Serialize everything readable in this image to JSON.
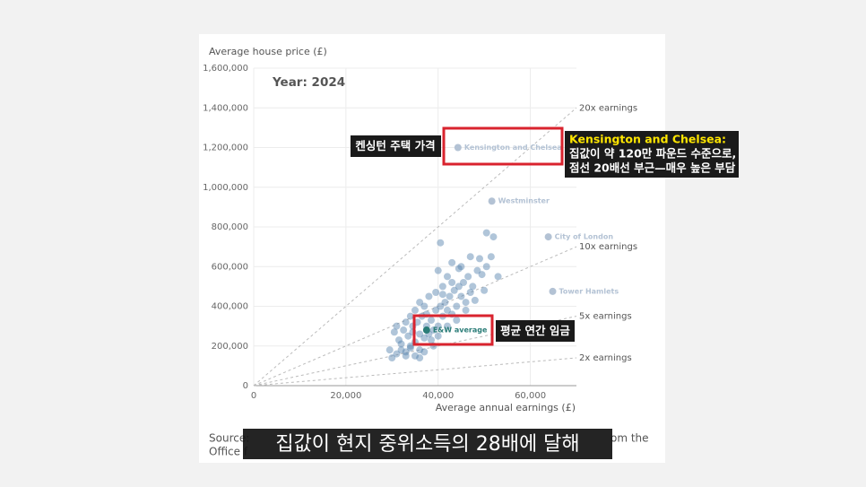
{
  "chart_data": {
    "type": "scatter",
    "title": "Year: 2024",
    "y_label": "Average house price (£)",
    "x_label": "Average annual earnings (£)",
    "xlim": [
      0,
      70000
    ],
    "ylim": [
      0,
      1600000
    ],
    "xticks": [
      0,
      {
        "value": 20000,
        "label": "20,000"
      },
      {
        "value": 40000,
        "label": "40,000"
      },
      {
        "value": 60000,
        "label": "60,000"
      }
    ],
    "yticks": [
      0,
      {
        "value": 200000,
        "label": "200,000"
      },
      {
        "value": 400000,
        "label": "400,000"
      },
      {
        "value": 600000,
        "label": "600,000"
      },
      {
        "value": 800000,
        "label": "800,000"
      },
      {
        "value": 1000000,
        "label": "1,000,000"
      },
      {
        "value": 1200000,
        "label": "1,200,000"
      },
      {
        "value": 1400000,
        "label": "1,400,000"
      },
      {
        "value": 1600000,
        "label": "1,600,000"
      }
    ],
    "grid": true,
    "series": [
      {
        "color": "#4f7fab",
        "x": [
          30000,
          31000,
          32000,
          33000,
          34000,
          35000,
          36000,
          37000,
          38000,
          33500,
          32500,
          31500,
          34500,
          35500,
          36500,
          37500,
          38500,
          39500,
          40500,
          41500,
          42500,
          43500,
          44500,
          45500,
          46500,
          47500,
          48500,
          49500,
          50500,
          51500,
          42000,
          43000,
          40000,
          41000,
          45000,
          46000,
          47000,
          38000,
          37000,
          36000,
          35000,
          34000,
          33000,
          39000,
          40000,
          41000,
          42000,
          43000,
          44000,
          45000,
          47000,
          49000,
          50500,
          40500,
          52000,
          53000,
          44000,
          36000,
          38500,
          34000,
          32000,
          30500,
          31000,
          39000,
          37000,
          35000,
          36000,
          33000,
          29500,
          40000,
          42000,
          46000,
          48000,
          50000,
          34500,
          37500,
          39500,
          41000,
          43000,
          44500
        ],
        "values": [
          140000,
          160000,
          180000,
          150000,
          200000,
          220000,
          180000,
          240000,
          260000,
          250000,
          280000,
          230000,
          300000,
          320000,
          350000,
          300000,
          330000,
          380000,
          400000,
          420000,
          450000,
          480000,
          500000,
          520000,
          550000,
          500000,
          580000,
          560000,
          600000,
          650000,
          550000,
          620000,
          580000,
          500000,
          450000,
          420000,
          470000,
          450000,
          400000,
          420000,
          380000,
          350000,
          320000,
          280000,
          300000,
          350000,
          380000,
          360000,
          400000,
          600000,
          650000,
          640000,
          770000,
          720000,
          750000,
          550000,
          330000,
          260000,
          230000,
          190000,
          210000,
          270000,
          300000,
          200000,
          170000,
          150000,
          140000,
          170000,
          180000,
          250000,
          300000,
          380000,
          430000,
          480000,
          270000,
          360000,
          470000,
          460000,
          520000,
          590000
        ]
      }
    ],
    "highlights": [
      {
        "label": "Kensington and Chelsea",
        "x": 44300,
        "value": 1200000,
        "color": "#b3c2d4"
      },
      {
        "label": "Westminster",
        "x": 51650,
        "value": 930000,
        "color": "#b3c2d4"
      },
      {
        "label": "City of London",
        "x": 63900,
        "value": 750000,
        "color": "#b3c2d4"
      },
      {
        "label": "Tower Hamlets",
        "x": 64850,
        "value": 475000,
        "color": "#b3c2d4"
      },
      {
        "label": "E&W average",
        "x": 37500,
        "value": 280000,
        "color": "#2b7d78"
      }
    ],
    "reference_lines": [
      {
        "label": "20x earnings",
        "multiple": 20
      },
      {
        "label": "10x earnings",
        "multiple": 10
      },
      {
        "label": "5x earnings",
        "multiple": 5
      },
      {
        "label": "2x earnings",
        "multiple": 2
      }
    ],
    "annotations": {
      "kensington_tag": "켄싱턴 주택 가격",
      "kensington_note": [
        "Kensington and Chelsea:",
        "집값이 약 120만 파운드 수준으로,",
        "점선 20배선 부근—매우 높은 부담"
      ],
      "average_tag": "평균 연간 임금"
    }
  },
  "overlay": {
    "caption": "집값이 현지 중위소득의 28배에 달해",
    "source_fragments": [
      "Source:",
      "om the",
      "Office f"
    ]
  }
}
